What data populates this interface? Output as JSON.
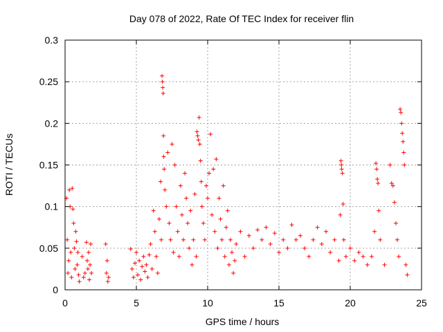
{
  "chart_data": {
    "type": "scatter",
    "title": "Day 078 of 2022, Rate Of TEC Index for receiver flin",
    "xlabel": "GPS time / hours",
    "ylabel": "ROTI / TECUs",
    "xlim": [
      0,
      25
    ],
    "ylim": [
      0,
      0.3
    ],
    "xticks": [
      0,
      5,
      10,
      15,
      20,
      25
    ],
    "xtick_labels": [
      "0",
      "5",
      "10",
      "15",
      "20",
      "25"
    ],
    "yticks": [
      0,
      0.05,
      0.1,
      0.15,
      0.2,
      0.25,
      0.3
    ],
    "ytick_labels": [
      "0",
      "0.05",
      "0.1",
      "0.15",
      "0.2",
      "0.25",
      "0.3"
    ],
    "grid": true,
    "marker": "plus",
    "marker_color": "#ff0000",
    "series": [
      {
        "points": [
          [
            0.1,
            0.11
          ],
          [
            0.15,
            0.06
          ],
          [
            0.2,
            0.02
          ],
          [
            0.25,
            0.035
          ],
          [
            0.3,
            0.12
          ],
          [
            0.35,
            0.1
          ],
          [
            0.4,
            0.045
          ],
          [
            0.45,
            0.015
          ],
          [
            0.5,
            0.122
          ],
          [
            0.55,
            0.097
          ],
          [
            0.6,
            0.08
          ],
          [
            0.65,
            0.05
          ],
          [
            0.7,
            0.025
          ],
          [
            0.75,
            0.07
          ],
          [
            0.8,
            0.058
          ],
          [
            0.85,
            0.03
          ],
          [
            0.9,
            0.045
          ],
          [
            0.95,
            0.018
          ],
          [
            1.0,
            0.01
          ],
          [
            1.2,
            0.04
          ],
          [
            1.3,
            0.015
          ],
          [
            1.4,
            0.02
          ],
          [
            1.5,
            0.057
          ],
          [
            1.55,
            0.035
          ],
          [
            1.6,
            0.025
          ],
          [
            1.65,
            0.045
          ],
          [
            1.7,
            0.012
          ],
          [
            1.75,
            0.03
          ],
          [
            1.8,
            0.055
          ],
          [
            1.85,
            0.02
          ],
          [
            2.85,
            0.055
          ],
          [
            2.9,
            0.02
          ],
          [
            2.95,
            0.035
          ],
          [
            3.0,
            0.01
          ],
          [
            3.05,
            0.015
          ],
          [
            4.6,
            0.049
          ],
          [
            4.7,
            0.025
          ],
          [
            4.8,
            0.015
          ],
          [
            4.9,
            0.032
          ],
          [
            5.0,
            0.045
          ],
          [
            5.1,
            0.018
          ],
          [
            5.2,
            0.035
          ],
          [
            5.3,
            0.012
          ],
          [
            5.4,
            0.028
          ],
          [
            5.5,
            0.04
          ],
          [
            5.6,
            0.022
          ],
          [
            5.7,
            0.03
          ],
          [
            5.8,
            0.015
          ],
          [
            5.9,
            0.042
          ],
          [
            6.0,
            0.055
          ],
          [
            6.1,
            0.025
          ],
          [
            6.2,
            0.095
          ],
          [
            6.3,
            0.07
          ],
          [
            6.4,
            0.04
          ],
          [
            6.5,
            0.02
          ],
          [
            6.6,
            0.085
          ],
          [
            6.7,
            0.13
          ],
          [
            6.75,
            0.06
          ],
          [
            6.8,
            0.257
          ],
          [
            6.83,
            0.25
          ],
          [
            6.85,
            0.243
          ],
          [
            6.88,
            0.236
          ],
          [
            6.9,
            0.185
          ],
          [
            6.92,
            0.16
          ],
          [
            6.95,
            0.145
          ],
          [
            7.0,
            0.12
          ],
          [
            7.1,
            0.1
          ],
          [
            7.2,
            0.165
          ],
          [
            7.3,
            0.08
          ],
          [
            7.4,
            0.06
          ],
          [
            7.5,
            0.175
          ],
          [
            7.6,
            0.045
          ],
          [
            7.7,
            0.15
          ],
          [
            7.8,
            0.1
          ],
          [
            7.9,
            0.07
          ],
          [
            8.0,
            0.04
          ],
          [
            8.1,
            0.125
          ],
          [
            8.2,
            0.09
          ],
          [
            8.3,
            0.06
          ],
          [
            8.4,
            0.14
          ],
          [
            8.5,
            0.11
          ],
          [
            8.6,
            0.08
          ],
          [
            8.7,
            0.05
          ],
          [
            8.8,
            0.095
          ],
          [
            8.9,
            0.03
          ],
          [
            9.0,
            0.06
          ],
          [
            9.1,
            0.115
          ],
          [
            9.2,
            0.04
          ],
          [
            9.25,
            0.19
          ],
          [
            9.3,
            0.185
          ],
          [
            9.35,
            0.18
          ],
          [
            9.4,
            0.207
          ],
          [
            9.45,
            0.175
          ],
          [
            9.5,
            0.155
          ],
          [
            9.55,
            0.13
          ],
          [
            9.6,
            0.1
          ],
          [
            9.7,
            0.08
          ],
          [
            9.8,
            0.06
          ],
          [
            9.9,
            0.125
          ],
          [
            10.0,
            0.11
          ],
          [
            10.1,
            0.14
          ],
          [
            10.2,
            0.187
          ],
          [
            10.3,
            0.09
          ],
          [
            10.4,
            0.145
          ],
          [
            10.5,
            0.07
          ],
          [
            10.6,
            0.157
          ],
          [
            10.7,
            0.05
          ],
          [
            10.8,
            0.11
          ],
          [
            10.9,
            0.085
          ],
          [
            11.0,
            0.06
          ],
          [
            11.1,
            0.125
          ],
          [
            11.2,
            0.04
          ],
          [
            11.3,
            0.075
          ],
          [
            11.4,
            0.095
          ],
          [
            11.5,
            0.03
          ],
          [
            11.6,
            0.06
          ],
          [
            11.7,
            0.045
          ],
          [
            11.8,
            0.02
          ],
          [
            11.9,
            0.035
          ],
          [
            12.0,
            0.055
          ],
          [
            12.3,
            0.07
          ],
          [
            12.6,
            0.04
          ],
          [
            12.9,
            0.065
          ],
          [
            13.2,
            0.05
          ],
          [
            13.5,
            0.072
          ],
          [
            13.8,
            0.06
          ],
          [
            14.1,
            0.075
          ],
          [
            14.4,
            0.055
          ],
          [
            14.7,
            0.068
          ],
          [
            15.0,
            0.045
          ],
          [
            15.3,
            0.06
          ],
          [
            15.6,
            0.05
          ],
          [
            15.9,
            0.078
          ],
          [
            16.2,
            0.06
          ],
          [
            16.5,
            0.065
          ],
          [
            16.8,
            0.05
          ],
          [
            17.1,
            0.04
          ],
          [
            17.4,
            0.06
          ],
          [
            17.7,
            0.075
          ],
          [
            18.0,
            0.055
          ],
          [
            18.3,
            0.07
          ],
          [
            18.6,
            0.045
          ],
          [
            18.9,
            0.06
          ],
          [
            19.2,
            0.035
          ],
          [
            19.3,
            0.09
          ],
          [
            19.35,
            0.155
          ],
          [
            19.38,
            0.15
          ],
          [
            19.4,
            0.145
          ],
          [
            19.45,
            0.14
          ],
          [
            19.5,
            0.103
          ],
          [
            19.55,
            0.06
          ],
          [
            19.7,
            0.04
          ],
          [
            20.0,
            0.05
          ],
          [
            20.3,
            0.035
          ],
          [
            20.6,
            0.045
          ],
          [
            20.9,
            0.04
          ],
          [
            21.2,
            0.03
          ],
          [
            21.5,
            0.04
          ],
          [
            21.7,
            0.07
          ],
          [
            21.8,
            0.152
          ],
          [
            21.85,
            0.145
          ],
          [
            21.9,
            0.133
          ],
          [
            21.95,
            0.128
          ],
          [
            22.0,
            0.095
          ],
          [
            22.1,
            0.06
          ],
          [
            22.4,
            0.03
          ],
          [
            22.8,
            0.15
          ],
          [
            22.9,
            0.128
          ],
          [
            23.0,
            0.125
          ],
          [
            23.1,
            0.105
          ],
          [
            23.2,
            0.08
          ],
          [
            23.3,
            0.06
          ],
          [
            23.4,
            0.04
          ],
          [
            23.5,
            0.217
          ],
          [
            23.55,
            0.213
          ],
          [
            23.6,
            0.2
          ],
          [
            23.65,
            0.188
          ],
          [
            23.7,
            0.178
          ],
          [
            23.75,
            0.165
          ],
          [
            23.8,
            0.15
          ],
          [
            23.9,
            0.03
          ],
          [
            24.0,
            0.018
          ]
        ]
      }
    ]
  }
}
